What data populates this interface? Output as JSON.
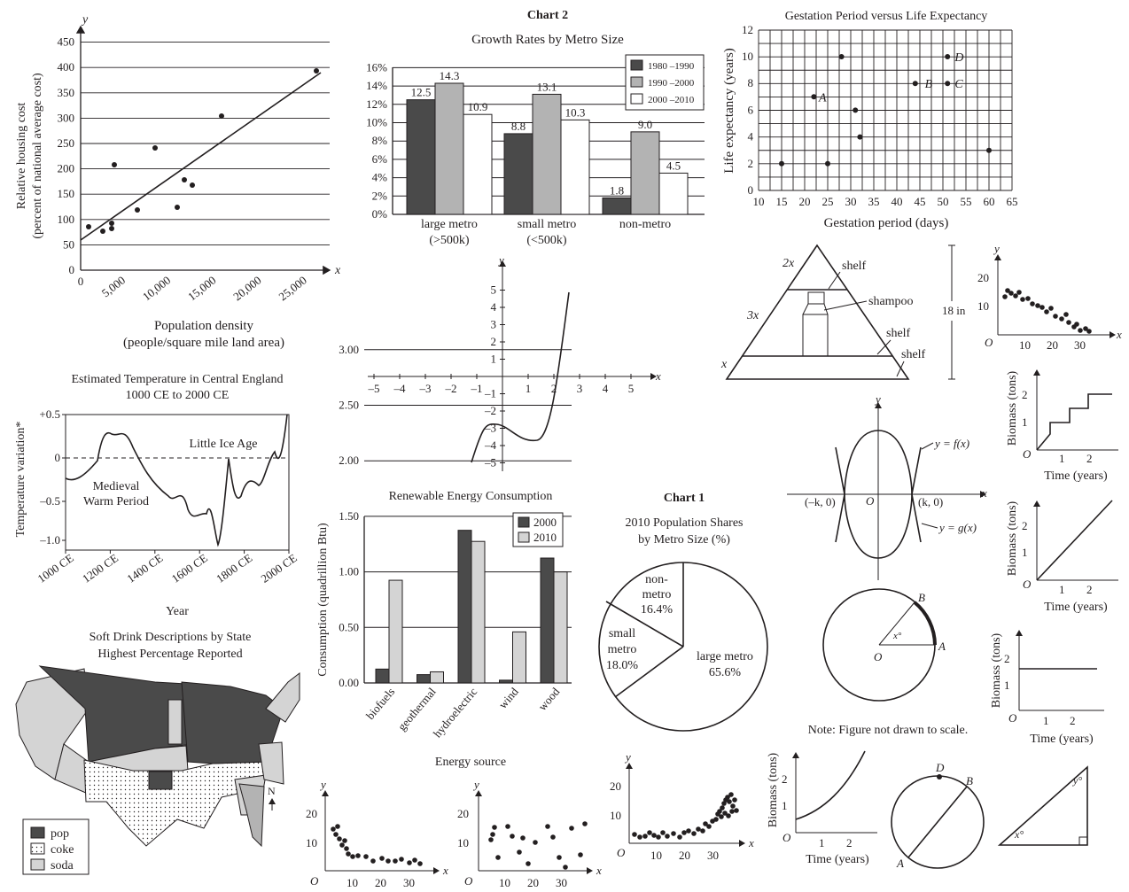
{
  "colors": {
    "ink": "#231f20",
    "dark": "#4a4a4a",
    "mid": "#b3b3b3",
    "light": "#d4d4d4",
    "white": "#ffffff"
  },
  "housing": {
    "ylabel1": "Relative housing cost",
    "ylabel2": "(percent of national average cost)",
    "xlabel1": "Population density",
    "xlabel2": "(people/square mile land area)",
    "axis_x": "x",
    "axis_y": "y",
    "yticks": [
      "0",
      "50",
      "100",
      "150",
      "200",
      "250",
      "300",
      "350",
      "400",
      "450"
    ],
    "xticks": [
      "0",
      "5,000",
      "10,000",
      "15,000",
      "20,000",
      "25,000"
    ]
  },
  "chart2": {
    "title": "Chart 2",
    "subtitle": "Growth Rates by Metro Size",
    "yticks": [
      "0%",
      "2%",
      "4%",
      "6%",
      "8%",
      "10%",
      "12%",
      "14%",
      "16%"
    ],
    "groups": [
      [
        "large metro",
        "(>500k)"
      ],
      [
        "small metro",
        "(<500k)"
      ],
      [
        "non-metro",
        ""
      ]
    ],
    "legend": [
      "1980 –1990",
      "1990 –2000",
      "2000 –2010"
    ],
    "labels": [
      "12.5",
      "14.3",
      "10.9",
      "8.8",
      "13.1",
      "10.3",
      "1.8",
      "9.0",
      "4.5"
    ]
  },
  "gestation": {
    "title": "Gestation Period versus Life Expectancy",
    "xlabel": "Gestation period (days)",
    "ylabel": "Life expectancy (years)",
    "xticks": [
      "10",
      "15",
      "20",
      "25",
      "30",
      "35",
      "40",
      "45",
      "50",
      "55",
      "60",
      "65"
    ],
    "yticks": [
      "0",
      "2",
      "4",
      "6",
      "8",
      "10",
      "12"
    ],
    "pts": [
      "A",
      "B",
      "C",
      "D"
    ]
  },
  "poly": {
    "axis_x": "x",
    "axis_y": "y",
    "xticks": [
      "–5",
      "–4",
      "–3",
      "–2",
      "–1",
      "1",
      "2",
      "3",
      "4",
      "5"
    ],
    "yticks": [
      "5",
      "4",
      "3",
      "2",
      "1",
      "–1",
      "–2",
      "–3",
      "–4",
      "–5"
    ]
  },
  "temp": {
    "title1": "Estimated Temperature in Central England",
    "title2": "1000 CE to 2000 CE",
    "ylabel": "Temperature variation*",
    "xlabel": "Year",
    "yticks": [
      "+0.5",
      "0",
      "–0.5",
      "–1.0"
    ],
    "xticks": [
      "1000 CE",
      "1200 CE",
      "1400 CE",
      "1600 CE",
      "1800 CE",
      "2000 CE"
    ],
    "ann1": "Little Ice Age",
    "ann2a": "Medieval",
    "ann2b": "Warm Period"
  },
  "renew": {
    "title": "Renewable Energy Consumption",
    "ylabel": "Consumption (quadrillion Btu)",
    "xlabel": "Energy source",
    "yticks": [
      "0.00",
      "0.50",
      "1.00",
      "1.50",
      "2.00",
      "2.50",
      "3.00"
    ],
    "cats": [
      "biofuels",
      "geothermal",
      "hydroelectric",
      "wind",
      "wood"
    ],
    "legend": [
      "2000",
      "2010"
    ]
  },
  "chart1": {
    "title": "Chart 1",
    "subtitle1": "2010 Population Shares",
    "subtitle2": "by Metro Size (%)",
    "s1a": "non-",
    "s1b": "metro",
    "s1c": "16.4%",
    "s2a": "small",
    "s2b": "metro",
    "s2c": "18.0%",
    "s3a": "large metro",
    "s3b": "65.6%"
  },
  "pyramid": {
    "l2x": "2x",
    "l3x": "3x",
    "lx": "x",
    "shelf": "shelf",
    "shampoo": "shampoo",
    "h": "18 in"
  },
  "scatter_small": {
    "y": "y",
    "x": "x",
    "o": "O",
    "yt": [
      "20",
      "10"
    ],
    "xt": [
      "10",
      "20",
      "30"
    ]
  },
  "biomass": {
    "ylabel": "Biomass (tons)",
    "xlabel": "Time (years)",
    "o": "O",
    "yt": [
      "2",
      "1"
    ],
    "xt": [
      "1",
      "2"
    ]
  },
  "parab": {
    "y": "y",
    "x": "x",
    "o": "O",
    "f": "y = f(x)",
    "g": "y = g(x)",
    "mk": "(–k, 0)",
    "k": "(k, 0)"
  },
  "circle1": {
    "b": "B",
    "a": "A",
    "o": "O",
    "ang": "x°"
  },
  "note": "Note: Figure not drawn to scale.",
  "circle2": {
    "d": "D",
    "b": "B",
    "a": "A"
  },
  "tri": {
    "y": "y°",
    "x": "x°"
  },
  "map": {
    "title1": "Soft Drink Descriptions by State",
    "title2": "Highest Percentage Reported",
    "legend": [
      "pop",
      "coke",
      "soda"
    ],
    "n": "N"
  },
  "bottom": {
    "y": "y",
    "x": "x",
    "o": "O",
    "yt": [
      "20",
      "10"
    ],
    "xt": [
      "10",
      "20",
      "30"
    ]
  }
}
